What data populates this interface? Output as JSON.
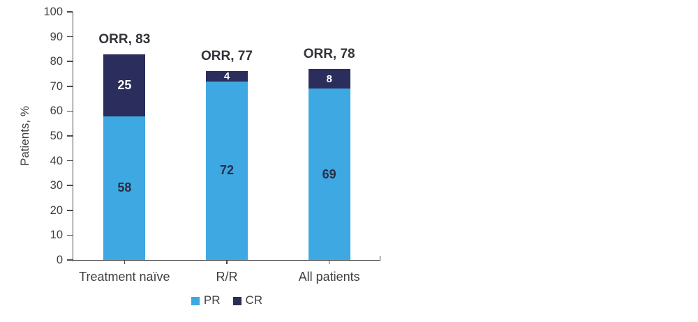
{
  "chart_data": {
    "type": "bar",
    "subtype": "stacked",
    "title": "",
    "xlabel": "",
    "ylabel": "Patients, %",
    "ylim": [
      0,
      100
    ],
    "yticks": [
      0,
      10,
      20,
      30,
      40,
      50,
      60,
      70,
      80,
      90,
      100
    ],
    "grid": false,
    "legend_position": "bottom",
    "categories": [
      "Treatment naïve",
      "R/R",
      "All patients"
    ],
    "series": [
      {
        "name": "PR",
        "color": "#3EA8E2",
        "values": [
          58,
          72,
          69
        ]
      },
      {
        "name": "CR",
        "color": "#2B2D5C",
        "values": [
          25,
          4,
          8
        ]
      }
    ],
    "orr_labels": [
      "ORR, 83",
      "ORR, 77",
      "ORR, 78"
    ],
    "colors": {
      "pr_fill": "#3EA8E2",
      "cr_fill": "#2B2D5C",
      "segment_label_on_blue": "#2B2D45",
      "segment_label_on_navy": "#FFFFFF",
      "orr_label_text": "#33333A",
      "axis_text": "#404040",
      "axis_line": "#4A4A4A",
      "background": "#FFFFFF"
    }
  }
}
